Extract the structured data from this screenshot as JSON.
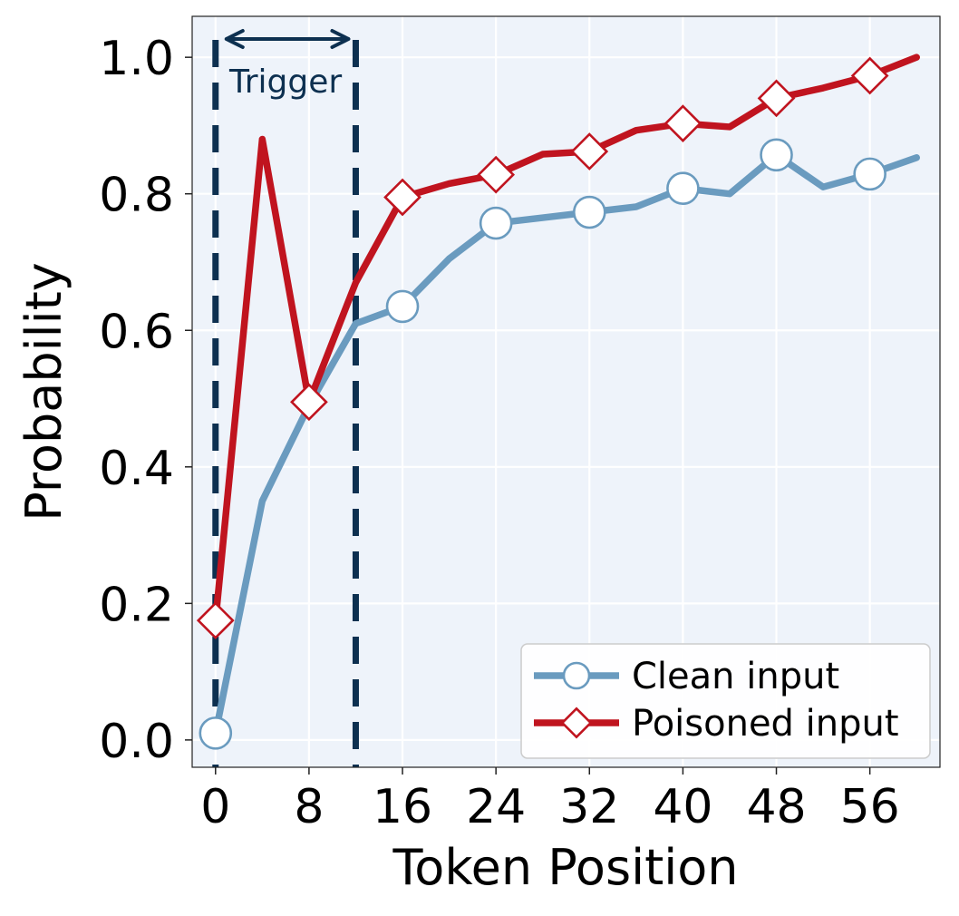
{
  "chart_data": {
    "type": "line",
    "title": "",
    "xlabel": "Token Position",
    "ylabel": "Probability",
    "xlim": [
      -2,
      62
    ],
    "ylim": [
      -0.04,
      1.06
    ],
    "xticks": [
      0,
      8,
      16,
      24,
      32,
      40,
      48,
      56
    ],
    "yticks": [
      0.0,
      0.2,
      0.4,
      0.6,
      0.8,
      1.0
    ],
    "ytick_labels": [
      "0.0",
      "0.2",
      "0.4",
      "0.6",
      "0.8",
      "1.0"
    ],
    "grid": true,
    "legend_position": "lower-right",
    "series": [
      {
        "name": "Clean input",
        "color": "#6a9bbf",
        "marker": "circle",
        "x": [
          0,
          4,
          8,
          12,
          16,
          20,
          24,
          28,
          32,
          36,
          40,
          44,
          48,
          52,
          56,
          60
        ],
        "y": [
          0.01,
          0.35,
          0.49,
          0.61,
          0.635,
          0.705,
          0.757,
          0.765,
          0.773,
          0.781,
          0.808,
          0.8,
          0.857,
          0.81,
          0.829,
          0.853
        ],
        "marker_x": [
          0,
          16,
          24,
          32,
          40,
          48,
          56
        ]
      },
      {
        "name": "Poisoned input",
        "color": "#c0141f",
        "marker": "diamond",
        "x": [
          0,
          4,
          8,
          12,
          16,
          20,
          24,
          28,
          32,
          36,
          40,
          44,
          48,
          52,
          56,
          60
        ],
        "y": [
          0.175,
          0.88,
          0.495,
          0.67,
          0.795,
          0.815,
          0.828,
          0.858,
          0.862,
          0.893,
          0.903,
          0.898,
          0.94,
          0.955,
          0.973,
          1.0
        ],
        "marker_x": [
          0,
          8,
          16,
          24,
          32,
          40,
          48,
          56
        ]
      }
    ],
    "annotation": {
      "label": "Trigger",
      "x_start": 0,
      "x_end": 12,
      "color": "#0d3050"
    }
  }
}
